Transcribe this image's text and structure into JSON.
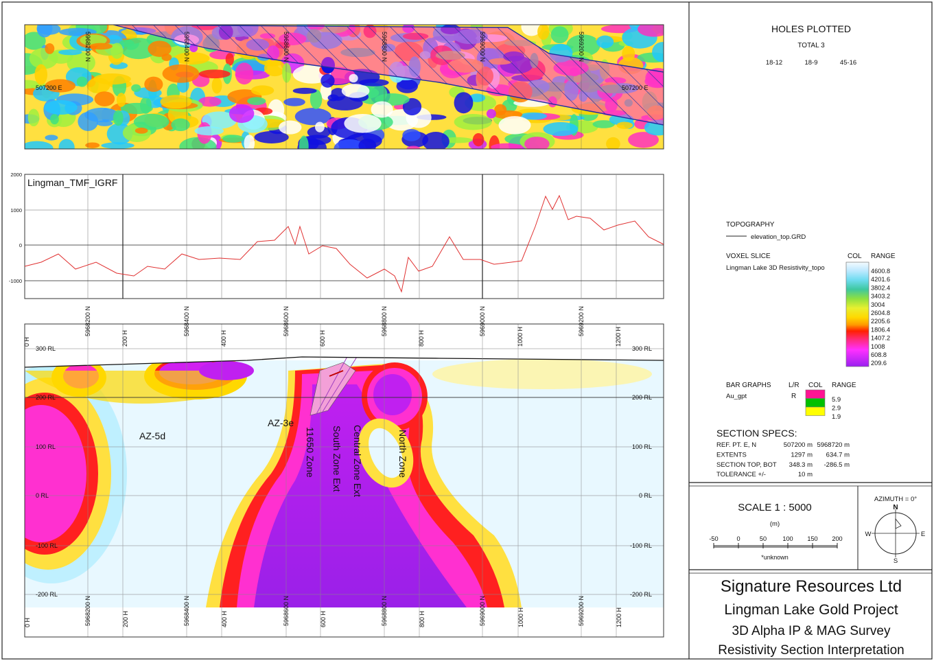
{
  "plan_map": {
    "northing_labels": [
      "5968200 N",
      "5968400 N",
      "5968600 N",
      "5968800 N",
      "5969000 N",
      "5969200 N"
    ],
    "easting_label_left": "507200 E",
    "easting_label_right": "507200 E"
  },
  "profile": {
    "title": "Lingman_TMF_IGRF",
    "y_ticks": [
      "2000",
      "1000",
      "0",
      "-1000"
    ]
  },
  "section": {
    "top_northings": [
      "5968200 N",
      "5968400 N",
      "5968600 N",
      "5968800 N",
      "5969000 N",
      "5969200 N"
    ],
    "top_h_labels": [
      "0 H",
      "200 H",
      "400 H",
      "600 H",
      "800 H",
      "1000 H",
      "1200 H"
    ],
    "bottom_northings": [
      "5968200 N",
      "5968400 N",
      "5968600 N",
      "5968800 N",
      "5969000 N",
      "5969200 N"
    ],
    "bottom_h_labels": [
      "0 H",
      "200 H",
      "400 H",
      "600 H",
      "800 H",
      "1000 H",
      "1200 H"
    ],
    "rl_labels": [
      "300 RL",
      "200 RL",
      "100 RL",
      "0 RL",
      "-100 RL",
      "-200 RL"
    ],
    "zones": [
      "AZ-5d",
      "AZ-3e",
      "11650 Zone",
      "South Zone Ext",
      "Central Zone Ext",
      "North Zone"
    ]
  },
  "legend": {
    "holes_title": "HOLES PLOTTED",
    "holes_total": "TOTAL 3",
    "holes": [
      "18-12",
      "18-9",
      "45-16"
    ],
    "topography_title": "TOPOGRAPHY",
    "topography_item": "elevation_top.GRD",
    "voxel_title": "VOXEL SLICE",
    "voxel_item": "Lingman Lake 3D Resistivity_topo",
    "col_header": "COL",
    "range_header": "RANGE",
    "voxel_ranges": [
      "4600.8",
      "4201.6",
      "3802.4",
      "3403.2",
      "3004",
      "2604.8",
      "2205.6",
      "1806.4",
      "1407.2",
      "1008",
      "608.8",
      "209.6"
    ],
    "bar_title": "BAR GRAPHS",
    "bar_lr_header": "L/R",
    "bar_col_header": "COL",
    "bar_range_header": "RANGE",
    "bar_item": "Au_gpt",
    "bar_lr": "R",
    "bar_ranges": [
      "5.9",
      "2.9",
      "1.9"
    ],
    "bar_colors": [
      "#ff1493",
      "#00c000",
      "#ffff00"
    ]
  },
  "specs": {
    "title": "SECTION  SPECS:",
    "rows": [
      {
        "label": "REF. PT.  E, N",
        "v1": "507200 m",
        "v2": "5968720 m"
      },
      {
        "label": "EXTENTS",
        "v1": "1297 m",
        "v2": "634.7 m"
      },
      {
        "label": "SECTION TOP, BOT",
        "v1": "348.3 m",
        "v2": "-286.5 m"
      },
      {
        "label": "TOLERANCE  +/-",
        "v1": "10 m",
        "v2": ""
      }
    ]
  },
  "scale": {
    "title": "SCALE   1 : 5000",
    "unit": "(m)",
    "ticks": [
      "-50",
      "0",
      "50",
      "100",
      "150",
      "200"
    ],
    "note": "*unknown"
  },
  "compass": {
    "azimuth": "AZIMUTH = 0°",
    "n": "N",
    "s": "S",
    "e": "E",
    "w": "W"
  },
  "title_block": {
    "company": "Signature Resources Ltd",
    "project": "Lingman Lake Gold Project",
    "survey": "3D Alpha IP & MAG Survey",
    "subtitle": "Resistivity Section Interpretation"
  }
}
